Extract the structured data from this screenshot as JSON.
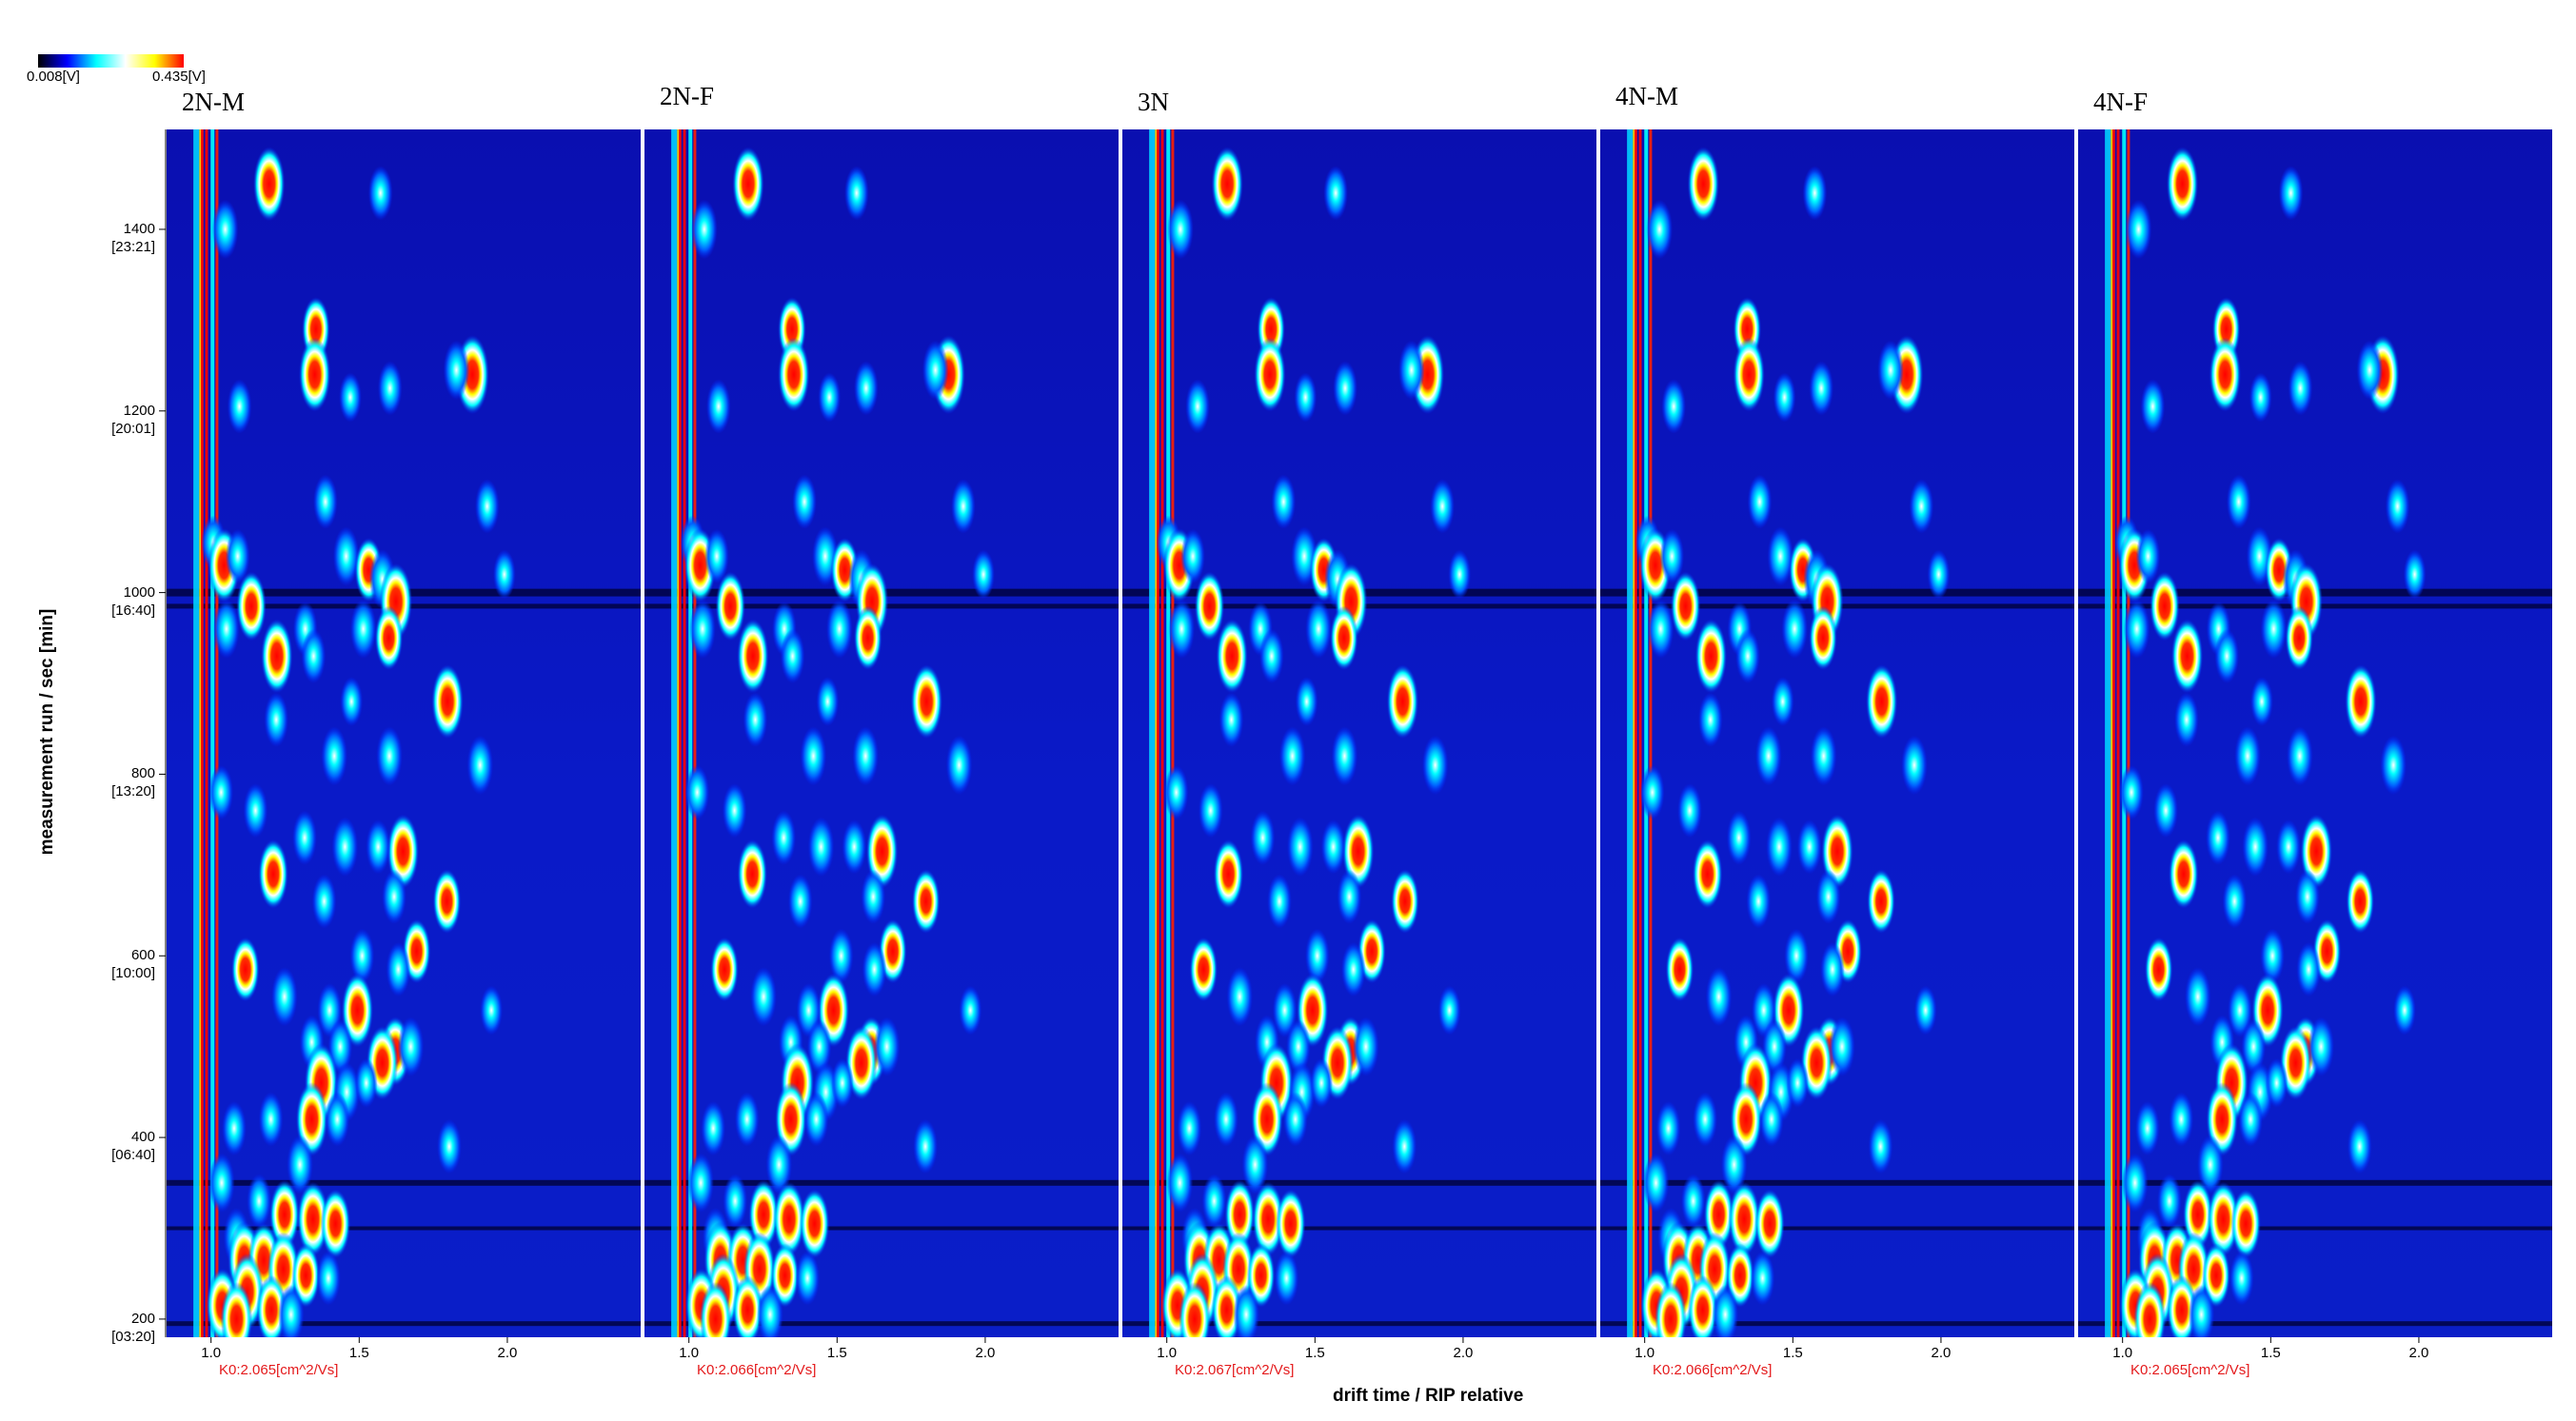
{
  "chart_data": {
    "type": "heatmap",
    "colorscale": {
      "min_label": "0.008[V]",
      "max_label": "0.435[V]",
      "colors": [
        "#000000",
        "#0000ff",
        "#00ffff",
        "#ffffff",
        "#ffff00",
        "#ff0000"
      ]
    },
    "xlabel": "drift time / RIP relative",
    "ylabel": "measurement run / sec [min]",
    "x_ticks": [
      "1.0",
      "1.5",
      "2.0"
    ],
    "x_tick_values": [
      1.0,
      1.5,
      2.0
    ],
    "xlim": [
      0.85,
      2.45
    ],
    "ylim": [
      180,
      1510
    ],
    "y_ticks": [
      {
        "value": 200,
        "label": "200",
        "sub": "[03:20]"
      },
      {
        "value": 400,
        "label": "400",
        "sub": "[06:40]"
      },
      {
        "value": 600,
        "label": "600",
        "sub": "[10:00]"
      },
      {
        "value": 800,
        "label": "800",
        "sub": "[13:20]"
      },
      {
        "value": 1000,
        "label": "1000",
        "sub": "[16:40]"
      },
      {
        "value": 1200,
        "label": "1200",
        "sub": "[20:01]"
      },
      {
        "value": 1400,
        "label": "1400",
        "sub": "[23:21]"
      }
    ],
    "panels": [
      {
        "name": "2N-M",
        "k0": "K0:2.065[cm^2/Vs]"
      },
      {
        "name": "2N-F",
        "k0": "K0:2.066[cm^2/Vs]"
      },
      {
        "name": "3N",
        "k0": "K0:2.067[cm^2/Vs]"
      },
      {
        "name": "4N-M",
        "k0": "K0:2.066[cm^2/Vs]"
      },
      {
        "name": "4N-F",
        "k0": "K0:2.065[cm^2/Vs]"
      }
    ],
    "peaks": [
      {
        "x": 1.2,
        "y": 1450,
        "i": 0.9
      },
      {
        "x": 1.57,
        "y": 1440,
        "i": 0.5
      },
      {
        "x": 1.05,
        "y": 1400,
        "i": 0.6
      },
      {
        "x": 1.35,
        "y": 1290,
        "i": 0.7
      },
      {
        "x": 1.35,
        "y": 1240,
        "i": 0.9
      },
      {
        "x": 1.1,
        "y": 1205,
        "i": 0.5
      },
      {
        "x": 1.88,
        "y": 1240,
        "i": 1.0
      },
      {
        "x": 1.83,
        "y": 1245,
        "i": 0.6
      },
      {
        "x": 1.6,
        "y": 1225,
        "i": 0.5
      },
      {
        "x": 1.47,
        "y": 1215,
        "i": 0.4
      },
      {
        "x": 1.39,
        "y": 1100,
        "i": 0.5
      },
      {
        "x": 1.93,
        "y": 1095,
        "i": 0.5
      },
      {
        "x": 1.01,
        "y": 1055,
        "i": 0.5
      },
      {
        "x": 1.04,
        "y": 1030,
        "i": 0.9
      },
      {
        "x": 1.09,
        "y": 1040,
        "i": 0.5
      },
      {
        "x": 1.46,
        "y": 1040,
        "i": 0.6
      },
      {
        "x": 1.53,
        "y": 1025,
        "i": 0.7
      },
      {
        "x": 1.58,
        "y": 1015,
        "i": 0.6
      },
      {
        "x": 1.62,
        "y": 990,
        "i": 0.95
      },
      {
        "x": 1.99,
        "y": 1020,
        "i": 0.4
      },
      {
        "x": 1.14,
        "y": 985,
        "i": 0.8
      },
      {
        "x": 1.05,
        "y": 960,
        "i": 0.6
      },
      {
        "x": 1.32,
        "y": 960,
        "i": 0.5
      },
      {
        "x": 1.51,
        "y": 960,
        "i": 0.6
      },
      {
        "x": 1.6,
        "y": 950,
        "i": 0.7
      },
      {
        "x": 1.35,
        "y": 930,
        "i": 0.5
      },
      {
        "x": 1.22,
        "y": 930,
        "i": 0.9
      },
      {
        "x": 1.8,
        "y": 880,
        "i": 0.9
      },
      {
        "x": 1.47,
        "y": 880,
        "i": 0.4
      },
      {
        "x": 1.22,
        "y": 860,
        "i": 0.5
      },
      {
        "x": 1.42,
        "y": 820,
        "i": 0.6
      },
      {
        "x": 1.6,
        "y": 820,
        "i": 0.6
      },
      {
        "x": 1.91,
        "y": 810,
        "i": 0.6
      },
      {
        "x": 1.03,
        "y": 780,
        "i": 0.5
      },
      {
        "x": 1.15,
        "y": 760,
        "i": 0.5
      },
      {
        "x": 1.32,
        "y": 730,
        "i": 0.5
      },
      {
        "x": 1.45,
        "y": 720,
        "i": 0.6
      },
      {
        "x": 1.65,
        "y": 715,
        "i": 0.9
      },
      {
        "x": 1.56,
        "y": 720,
        "i": 0.5
      },
      {
        "x": 1.21,
        "y": 690,
        "i": 0.8
      },
      {
        "x": 1.8,
        "y": 660,
        "i": 0.7
      },
      {
        "x": 1.38,
        "y": 660,
        "i": 0.5
      },
      {
        "x": 1.62,
        "y": 665,
        "i": 0.5
      },
      {
        "x": 1.69,
        "y": 605,
        "i": 0.7
      },
      {
        "x": 1.51,
        "y": 600,
        "i": 0.5
      },
      {
        "x": 1.12,
        "y": 585,
        "i": 0.7
      },
      {
        "x": 1.63,
        "y": 585,
        "i": 0.5
      },
      {
        "x": 1.25,
        "y": 555,
        "i": 0.6
      },
      {
        "x": 1.49,
        "y": 540,
        "i": 0.9
      },
      {
        "x": 1.4,
        "y": 540,
        "i": 0.5
      },
      {
        "x": 1.95,
        "y": 540,
        "i": 0.4
      },
      {
        "x": 1.62,
        "y": 495,
        "i": 0.8
      },
      {
        "x": 1.58,
        "y": 482,
        "i": 0.9
      },
      {
        "x": 1.67,
        "y": 500,
        "i": 0.6
      },
      {
        "x": 1.34,
        "y": 505,
        "i": 0.5
      },
      {
        "x": 1.44,
        "y": 500,
        "i": 0.5
      },
      {
        "x": 1.37,
        "y": 460,
        "i": 1.0
      },
      {
        "x": 1.46,
        "y": 450,
        "i": 0.6
      },
      {
        "x": 1.52,
        "y": 460,
        "i": 0.4
      },
      {
        "x": 1.34,
        "y": 420,
        "i": 0.9
      },
      {
        "x": 1.43,
        "y": 420,
        "i": 0.5
      },
      {
        "x": 1.2,
        "y": 420,
        "i": 0.5
      },
      {
        "x": 1.08,
        "y": 410,
        "i": 0.5
      },
      {
        "x": 1.8,
        "y": 390,
        "i": 0.5
      },
      {
        "x": 1.3,
        "y": 370,
        "i": 0.6
      },
      {
        "x": 1.04,
        "y": 350,
        "i": 0.6
      },
      {
        "x": 1.16,
        "y": 330,
        "i": 0.5
      },
      {
        "x": 1.25,
        "y": 315,
        "i": 0.8
      },
      {
        "x": 1.34,
        "y": 310,
        "i": 0.9
      },
      {
        "x": 1.42,
        "y": 305,
        "i": 0.8
      },
      {
        "x": 1.09,
        "y": 290,
        "i": 0.6
      },
      {
        "x": 1.11,
        "y": 265,
        "i": 0.95
      },
      {
        "x": 1.18,
        "y": 265,
        "i": 0.9
      },
      {
        "x": 1.24,
        "y": 255,
        "i": 0.9
      },
      {
        "x": 1.32,
        "y": 248,
        "i": 0.7
      },
      {
        "x": 1.4,
        "y": 245,
        "i": 0.5
      },
      {
        "x": 1.12,
        "y": 230,
        "i": 0.95
      },
      {
        "x": 1.04,
        "y": 215,
        "i": 0.9
      },
      {
        "x": 1.2,
        "y": 210,
        "i": 0.8
      },
      {
        "x": 1.27,
        "y": 205,
        "i": 0.6
      },
      {
        "x": 1.09,
        "y": 200,
        "i": 0.9
      }
    ]
  }
}
